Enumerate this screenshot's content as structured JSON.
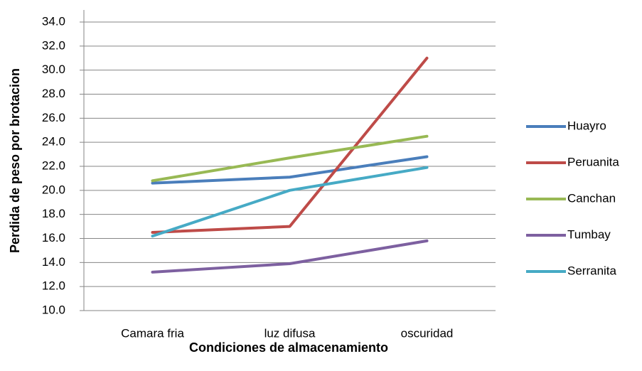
{
  "chart_data": {
    "type": "line",
    "x_label": "Condiciones de almacenamiento",
    "y_label": "Perdida de peso por brotacion",
    "categories": [
      "Camara fria",
      "luz difusa",
      "oscuridad"
    ],
    "series": [
      {
        "name": "Huayro",
        "color": "#4a7ebb",
        "values": [
          20.6,
          21.1,
          22.8
        ]
      },
      {
        "name": "Peruanita",
        "color": "#be4b48",
        "values": [
          16.5,
          17.0,
          31.0
        ]
      },
      {
        "name": "Canchan",
        "color": "#98b954",
        "values": [
          20.8,
          22.7,
          24.5
        ]
      },
      {
        "name": "Tumbay",
        "color": "#7d60a0",
        "values": [
          13.2,
          13.9,
          15.8
        ]
      },
      {
        "name": "Serranita",
        "color": "#46aac5",
        "values": [
          16.2,
          20.0,
          21.9
        ]
      }
    ],
    "ylim": [
      10,
      34
    ],
    "yticks": [
      {
        "value": 10,
        "label": "10.0"
      },
      {
        "value": 12,
        "label": "12.0"
      },
      {
        "value": 14,
        "label": "14.0"
      },
      {
        "value": 16,
        "label": "16.0"
      },
      {
        "value": 18,
        "label": "18.0"
      },
      {
        "value": 20,
        "label": "20.0"
      },
      {
        "value": 22,
        "label": "22.0"
      },
      {
        "value": 24,
        "label": "24.0"
      },
      {
        "value": 26,
        "label": "26.0"
      },
      {
        "value": 28,
        "label": "28.0"
      },
      {
        "value": 30,
        "label": "30.0"
      },
      {
        "value": 32,
        "label": "32.0"
      },
      {
        "value": 34,
        "label": "34.0"
      }
    ],
    "grid": true,
    "legend": "right"
  }
}
